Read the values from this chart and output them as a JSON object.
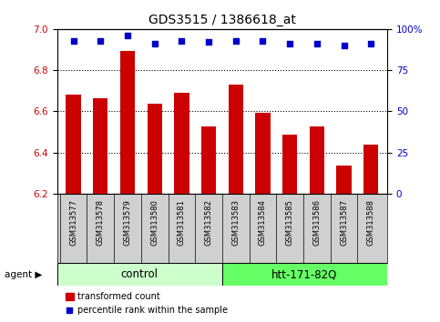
{
  "title": "GDS3515 / 1386618_at",
  "samples": [
    "GSM313577",
    "GSM313578",
    "GSM313579",
    "GSM313580",
    "GSM313581",
    "GSM313582",
    "GSM313583",
    "GSM313584",
    "GSM313585",
    "GSM313586",
    "GSM313587",
    "GSM313588"
  ],
  "bar_values": [
    6.68,
    6.665,
    6.895,
    6.635,
    6.69,
    6.525,
    6.73,
    6.595,
    6.485,
    6.525,
    6.335,
    6.44
  ],
  "percentile_values": [
    93,
    93,
    96,
    91,
    93,
    92,
    93,
    93,
    91,
    91,
    90,
    91
  ],
  "bar_color": "#cc0000",
  "dot_color": "#0000cc",
  "ylim_left": [
    6.2,
    7.0
  ],
  "ylim_right": [
    0,
    100
  ],
  "yticks_left": [
    6.2,
    6.4,
    6.6,
    6.8,
    7.0
  ],
  "yticks_right": [
    0,
    25,
    50,
    75,
    100
  ],
  "ytick_labels_right": [
    "0",
    "25",
    "50",
    "75",
    "100%"
  ],
  "grid_lines": [
    6.4,
    6.6,
    6.8
  ],
  "control_label": "control",
  "htt_label": "htt-171-82Q",
  "agent_label": "agent",
  "legend_bar_label": "transformed count",
  "legend_dot_label": "percentile rank within the sample",
  "control_color": "#ccffcc",
  "htt_color": "#66ff66",
  "tick_bg_color": "#d0d0d0",
  "bar_width": 0.55,
  "figsize": [
    4.83,
    3.54
  ],
  "dpi": 100,
  "n_control": 6,
  "n_htt": 6
}
